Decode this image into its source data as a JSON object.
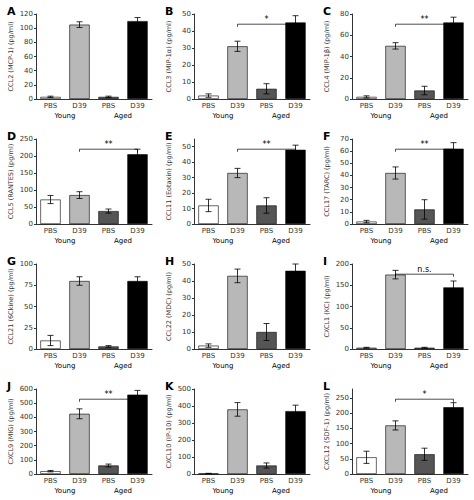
{
  "chart_data": [
    {
      "type": "bar",
      "title": "A",
      "ylabel": "CCL2 (MCP-1) (pg/ml)",
      "categories": [
        "PBS",
        "D39",
        "PBS",
        "D39"
      ],
      "values": [
        3,
        105,
        3,
        110
      ],
      "errors": [
        1,
        4,
        1,
        5
      ],
      "colors": [
        "white",
        "#b8b8b8",
        "#555555",
        "black"
      ],
      "ylim": [
        0,
        120
      ],
      "yticks": [
        0,
        20,
        40,
        60,
        80,
        100,
        120
      ],
      "grid": false,
      "group_labels": [
        {
          "text": "Young",
          "categories": [
            0,
            1
          ]
        },
        {
          "text": "Aged",
          "categories": [
            2,
            3
          ]
        }
      ],
      "annotations": []
    },
    {
      "type": "bar",
      "title": "B",
      "ylabel": "CCL3 (MIP-1α) (pg/ml)",
      "categories": [
        "PBS",
        "D39",
        "PBS",
        "D39"
      ],
      "values": [
        2,
        31,
        6,
        45
      ],
      "errors": [
        1,
        3,
        3,
        4
      ],
      "colors": [
        "white",
        "#b8b8b8",
        "#555555",
        "black"
      ],
      "ylim": [
        0,
        50
      ],
      "yticks": [
        0,
        10,
        20,
        30,
        40,
        50
      ],
      "grid": false,
      "group_labels": [
        {
          "text": "Young",
          "categories": [
            0,
            1
          ]
        },
        {
          "text": "Aged",
          "categories": [
            2,
            3
          ]
        }
      ],
      "annotations": [
        {
          "text": "*",
          "bracket": [
            1,
            3
          ]
        }
      ]
    },
    {
      "type": "bar",
      "title": "C",
      "ylabel": "CCL4 (MIP-1β) (pg/ml)",
      "categories": [
        "PBS",
        "D39",
        "PBS",
        "D39"
      ],
      "values": [
        2,
        50,
        8,
        72
      ],
      "errors": [
        1,
        3,
        4,
        5
      ],
      "colors": [
        "white",
        "#b8b8b8",
        "#555555",
        "black"
      ],
      "ylim": [
        0,
        80
      ],
      "yticks": [
        0,
        20,
        40,
        60,
        80
      ],
      "grid": false,
      "group_labels": [
        {
          "text": "Young",
          "categories": [
            0,
            1
          ]
        },
        {
          "text": "Aged",
          "categories": [
            2,
            3
          ]
        }
      ],
      "annotations": [
        {
          "text": "**",
          "bracket": [
            1,
            3
          ]
        }
      ]
    },
    {
      "type": "bar",
      "title": "D",
      "ylabel": "CCL5 (RANTES) (pg/ml)",
      "categories": [
        "PBS",
        "D39",
        "PBS",
        "D39"
      ],
      "values": [
        72,
        85,
        38,
        205
      ],
      "errors": [
        12,
        10,
        6,
        15
      ],
      "colors": [
        "white",
        "#b8b8b8",
        "#555555",
        "black"
      ],
      "ylim": [
        0,
        250
      ],
      "yticks": [
        0,
        50,
        100,
        150,
        200,
        250
      ],
      "grid": false,
      "group_labels": [
        {
          "text": "Young",
          "categories": [
            0,
            1
          ]
        },
        {
          "text": "Aged",
          "categories": [
            2,
            3
          ]
        }
      ],
      "annotations": [
        {
          "text": "**",
          "bracket": [
            1,
            3
          ]
        }
      ]
    },
    {
      "type": "bar",
      "title": "E",
      "ylabel": "CCL11 (Eotaxin) (pg/ml)",
      "categories": [
        "PBS",
        "D39",
        "PBS",
        "D39"
      ],
      "values": [
        12,
        33,
        12,
        48
      ],
      "errors": [
        4,
        3,
        5,
        3
      ],
      "colors": [
        "white",
        "#b8b8b8",
        "#555555",
        "black"
      ],
      "ylim": [
        0,
        55
      ],
      "yticks": [
        0,
        10,
        20,
        30,
        40,
        50
      ],
      "grid": false,
      "group_labels": [
        {
          "text": "Young",
          "categories": [
            0,
            1
          ]
        },
        {
          "text": "Aged",
          "categories": [
            2,
            3
          ]
        }
      ],
      "annotations": [
        {
          "text": "**",
          "bracket": [
            1,
            3
          ]
        }
      ]
    },
    {
      "type": "bar",
      "title": "F",
      "ylabel": "CCL17 (TARC) (pg/ml)",
      "categories": [
        "PBS",
        "D39",
        "PBS",
        "D39"
      ],
      "values": [
        2,
        42,
        12,
        62
      ],
      "errors": [
        1,
        5,
        8,
        5
      ],
      "colors": [
        "white",
        "#b8b8b8",
        "#555555",
        "black"
      ],
      "ylim": [
        0,
        70
      ],
      "yticks": [
        0,
        10,
        20,
        30,
        40,
        50,
        60,
        70
      ],
      "grid": false,
      "group_labels": [
        {
          "text": "Young",
          "categories": [
            0,
            1
          ]
        },
        {
          "text": "Aged",
          "categories": [
            2,
            3
          ]
        }
      ],
      "annotations": [
        {
          "text": "**",
          "bracket": [
            1,
            3
          ]
        }
      ]
    },
    {
      "type": "bar",
      "title": "G",
      "ylabel": "CCL21 (6Ckine) (pg/ml)",
      "categories": [
        "PBS",
        "D39",
        "PBS",
        "D39"
      ],
      "values": [
        10,
        80,
        3,
        80
      ],
      "errors": [
        6,
        5,
        1,
        5
      ],
      "colors": [
        "white",
        "#b8b8b8",
        "#555555",
        "black"
      ],
      "ylim": [
        0,
        100
      ],
      "yticks": [
        0,
        25,
        50,
        75,
        100
      ],
      "grid": false,
      "group_labels": [
        {
          "text": "Young",
          "categories": [
            0,
            1
          ]
        },
        {
          "text": "Aged",
          "categories": [
            2,
            3
          ]
        }
      ],
      "annotations": []
    },
    {
      "type": "bar",
      "title": "H",
      "ylabel": "CCL22 (MDC) (pg/ml)",
      "categories": [
        "PBS",
        "D39",
        "PBS",
        "D39"
      ],
      "values": [
        2,
        43,
        10,
        46
      ],
      "errors": [
        1,
        4,
        5,
        4
      ],
      "colors": [
        "white",
        "#b8b8b8",
        "#555555",
        "black"
      ],
      "ylim": [
        0,
        50
      ],
      "yticks": [
        0,
        10,
        20,
        30,
        40,
        50
      ],
      "grid": false,
      "group_labels": [
        {
          "text": "Young",
          "categories": [
            0,
            1
          ]
        },
        {
          "text": "Aged",
          "categories": [
            2,
            3
          ]
        }
      ],
      "annotations": []
    },
    {
      "type": "bar",
      "title": "I",
      "ylabel": "CXCL1 (KC) (pg/ml)",
      "categories": [
        "PBS",
        "D39",
        "PBS",
        "D39"
      ],
      "values": [
        3,
        175,
        3,
        145
      ],
      "errors": [
        1,
        10,
        1,
        15
      ],
      "colors": [
        "white",
        "#b8b8b8",
        "#555555",
        "black"
      ],
      "ylim": [
        0,
        200
      ],
      "yticks": [
        0,
        50,
        100,
        150,
        200
      ],
      "grid": false,
      "group_labels": [
        {
          "text": "Young",
          "categories": [
            0,
            1
          ]
        },
        {
          "text": "Aged",
          "categories": [
            2,
            3
          ]
        }
      ],
      "annotations": [
        {
          "text": "n.s.",
          "bracket": [
            1,
            3
          ]
        }
      ]
    },
    {
      "type": "bar",
      "title": "J",
      "ylabel": "CXCL9 (MIG) (pg/ml)",
      "categories": [
        "PBS",
        "D39",
        "PBS",
        "D39"
      ],
      "values": [
        20,
        425,
        60,
        560
      ],
      "errors": [
        5,
        35,
        10,
        30
      ],
      "colors": [
        "white",
        "#b8b8b8",
        "#555555",
        "black"
      ],
      "ylim": [
        0,
        600
      ],
      "yticks": [
        0,
        100,
        200,
        300,
        400,
        500,
        600
      ],
      "grid": false,
      "group_labels": [
        {
          "text": "Young",
          "categories": [
            0,
            1
          ]
        },
        {
          "text": "Aged",
          "categories": [
            2,
            3
          ]
        }
      ],
      "annotations": [
        {
          "text": "**",
          "bracket": [
            1,
            3
          ]
        }
      ]
    },
    {
      "type": "bar",
      "title": "K",
      "ylabel": "CXCL10 (IP-10) (pg/ml)",
      "categories": [
        "PBS",
        "D39",
        "PBS",
        "D39"
      ],
      "values": [
        3,
        380,
        50,
        370
      ],
      "errors": [
        1,
        40,
        15,
        35
      ],
      "colors": [
        "white",
        "#b8b8b8",
        "#555555",
        "black"
      ],
      "ylim": [
        0,
        500
      ],
      "yticks": [
        0,
        100,
        200,
        300,
        400,
        500
      ],
      "grid": false,
      "group_labels": [
        {
          "text": "Young",
          "categories": [
            0,
            1
          ]
        },
        {
          "text": "Aged",
          "categories": [
            2,
            3
          ]
        }
      ],
      "annotations": []
    },
    {
      "type": "bar",
      "title": "L",
      "ylabel": "CXCL12 (SDF-1) (pg/ml)",
      "categories": [
        "PBS",
        "D39",
        "PBS",
        "D39"
      ],
      "values": [
        55,
        160,
        65,
        220
      ],
      "errors": [
        20,
        15,
        20,
        15
      ],
      "colors": [
        "white",
        "#b8b8b8",
        "#555555",
        "black"
      ],
      "ylim": [
        0,
        280
      ],
      "yticks": [
        0,
        50,
        100,
        150,
        200,
        250
      ],
      "grid": false,
      "group_labels": [
        {
          "text": "Young",
          "categories": [
            0,
            1
          ]
        },
        {
          "text": "Aged",
          "categories": [
            2,
            3
          ]
        }
      ],
      "annotations": [
        {
          "text": "*",
          "bracket": [
            1,
            3
          ]
        }
      ]
    }
  ]
}
